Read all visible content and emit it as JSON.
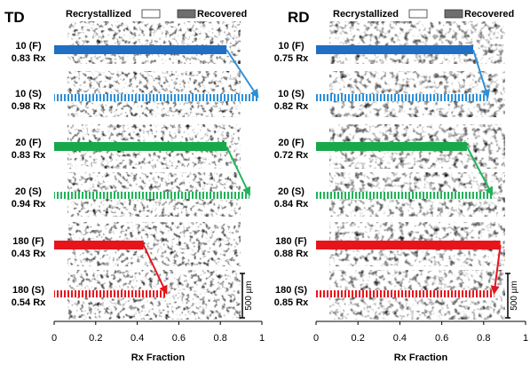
{
  "chart_data": [
    {
      "type": "bar",
      "title": "TD",
      "xlabel": "Rx Fraction",
      "xlim": [
        0,
        1
      ],
      "xticks": [
        "0",
        "0.2",
        "0.4",
        "0.6",
        "0.8",
        "1"
      ],
      "legend": [
        "Recrystallized",
        "Recovered"
      ],
      "legend_position": "top",
      "scale_bar": "500 µm",
      "rows": [
        {
          "label1": "10 (F)",
          "label2": "0.83 Rx",
          "value": 0.83,
          "fill": "solid",
          "color": "#1f6fc4",
          "group": "10"
        },
        {
          "label1": "10 (S)",
          "label2": "0.98 Rx",
          "value": 0.98,
          "fill": "striped",
          "color": "#2e8fd8",
          "group": "10"
        },
        {
          "label1": "20 (F)",
          "label2": "0.83 Rx",
          "value": 0.83,
          "fill": "solid",
          "color": "#18a84a",
          "group": "20"
        },
        {
          "label1": "20 (S)",
          "label2": "0.94 Rx",
          "value": 0.94,
          "fill": "striped",
          "color": "#22b35a",
          "group": "20"
        },
        {
          "label1": "180 (F)",
          "label2": "0.43 Rx",
          "value": 0.43,
          "fill": "solid",
          "color": "#e8141c",
          "group": "180"
        },
        {
          "label1": "180 (S)",
          "label2": "0.54 Rx",
          "value": 0.54,
          "fill": "striped",
          "color": "#e8141c",
          "group": "180"
        }
      ]
    },
    {
      "type": "bar",
      "title": "RD",
      "xlabel": "Rx Fraction",
      "xlim": [
        0,
        1
      ],
      "xticks": [
        "0",
        "0.2",
        "0.4",
        "0.6",
        "0.8",
        "1"
      ],
      "legend": [
        "Recrystallized",
        "Recovered"
      ],
      "legend_position": "top",
      "scale_bar": "500 µm",
      "rows": [
        {
          "label1": "10 (F)",
          "label2": "0.75 Rx",
          "value": 0.75,
          "fill": "solid",
          "color": "#1f6fc4",
          "group": "10"
        },
        {
          "label1": "10 (S)",
          "label2": "0.82 Rx",
          "value": 0.82,
          "fill": "striped",
          "color": "#2e8fd8",
          "group": "10"
        },
        {
          "label1": "20 (F)",
          "label2": "0.72 Rx",
          "value": 0.72,
          "fill": "solid",
          "color": "#18a84a",
          "group": "20"
        },
        {
          "label1": "20 (S)",
          "label2": "0.84 Rx",
          "value": 0.84,
          "fill": "striped",
          "color": "#22b35a",
          "group": "20"
        },
        {
          "label1": "180 (F)",
          "label2": "0.88 Rx",
          "value": 0.88,
          "fill": "solid",
          "color": "#e8141c",
          "group": "180"
        },
        {
          "label1": "180 (S)",
          "label2": "0.85 Rx",
          "value": 0.85,
          "fill": "striped",
          "color": "#e8141c",
          "group": "180"
        }
      ]
    }
  ]
}
